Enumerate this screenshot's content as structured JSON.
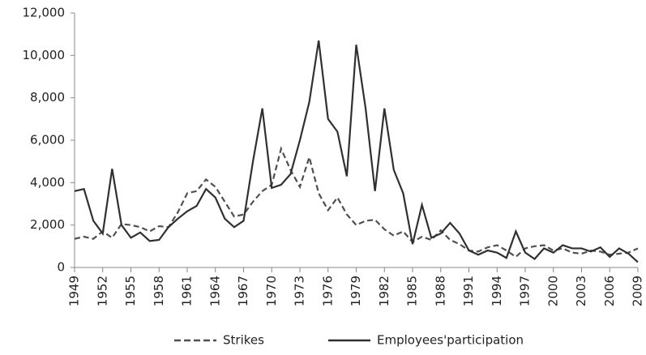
{
  "chart_data": {
    "type": "line",
    "x": [
      1949,
      1950,
      1951,
      1952,
      1953,
      1954,
      1955,
      1956,
      1957,
      1958,
      1959,
      1960,
      1961,
      1962,
      1963,
      1964,
      1965,
      1966,
      1967,
      1968,
      1969,
      1970,
      1971,
      1972,
      1973,
      1974,
      1975,
      1976,
      1977,
      1978,
      1979,
      1980,
      1981,
      1982,
      1983,
      1984,
      1985,
      1986,
      1987,
      1988,
      1989,
      1990,
      1991,
      1992,
      1993,
      1994,
      1995,
      1996,
      1997,
      1998,
      1999,
      2000,
      2001,
      2002,
      2003,
      2004,
      2005,
      2006,
      2007,
      2008,
      2009
    ],
    "xlim": [
      1949,
      2009
    ],
    "xticks": [
      1949,
      1952,
      1955,
      1958,
      1961,
      1964,
      1967,
      1970,
      1973,
      1976,
      1979,
      1982,
      1985,
      1988,
      1991,
      1994,
      1997,
      2000,
      2003,
      2006,
      2009
    ],
    "ylim": [
      0,
      12000
    ],
    "yticks": [
      0,
      {
        "value": 2000,
        "label": "2,000"
      },
      {
        "value": 4000,
        "label": "4,000"
      },
      {
        "value": 6000,
        "label": "6,000"
      },
      {
        "value": 8000,
        "label": "8,000"
      },
      {
        "value": 10000,
        "label": "10,000"
      },
      {
        "value": 12000,
        "label": "12,000"
      }
    ],
    "legend": "bottom",
    "series": [
      {
        "name": "Strikes",
        "color": "#505050",
        "style": "dashed",
        "values": [
          1350,
          1450,
          1350,
          1700,
          1400,
          2050,
          2000,
          1900,
          1700,
          1950,
          1900,
          2600,
          3500,
          3600,
          4150,
          3800,
          3100,
          2400,
          2500,
          3100,
          3600,
          3900,
          5600,
          4600,
          3800,
          5200,
          3500,
          2700,
          3300,
          2500,
          2000,
          2200,
          2250,
          1800,
          1500,
          1700,
          1200,
          1450,
          1300,
          1750,
          1300,
          1100,
          800,
          750,
          950,
          1050,
          800,
          500,
          900,
          1000,
          1050,
          800,
          900,
          700,
          650,
          800,
          750,
          600,
          650,
          700,
          900
        ]
      },
      {
        "name": "Employees'participation",
        "color": "#303030",
        "style": "solid",
        "values": [
          3600,
          3700,
          2200,
          1600,
          4650,
          2000,
          1400,
          1650,
          1250,
          1300,
          1900,
          2300,
          2650,
          2900,
          3700,
          3300,
          2300,
          1900,
          2200,
          5000,
          7500,
          3750,
          3900,
          4400,
          6000,
          7800,
          10700,
          7000,
          6400,
          4300,
          10500,
          7500,
          3600,
          7500,
          4600,
          3500,
          1100,
          2950,
          1400,
          1600,
          2100,
          1600,
          800,
          600,
          800,
          700,
          450,
          1700,
          700,
          400,
          900,
          700,
          1050,
          900,
          900,
          750,
          950,
          500,
          900,
          650,
          250
        ]
      }
    ]
  }
}
